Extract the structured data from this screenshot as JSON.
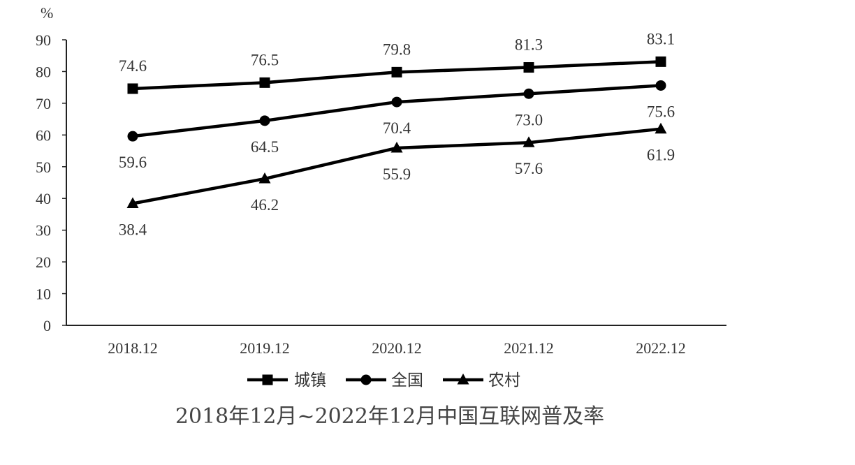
{
  "chart_data": {
    "type": "line",
    "title": "2018年12月~2022年12月中国互联网普及率",
    "ylabel": "%",
    "xlabel": "",
    "categories": [
      "2018.12",
      "2019.12",
      "2020.12",
      "2021.12",
      "2022.12"
    ],
    "ylim": [
      0,
      90
    ],
    "yticks": [
      0,
      10,
      20,
      30,
      40,
      50,
      60,
      70,
      80,
      90
    ],
    "grid": false,
    "legend_position": "bottom",
    "series": [
      {
        "name": "城镇",
        "marker": "square",
        "color": "#000000",
        "values": [
          74.6,
          76.5,
          79.8,
          81.3,
          83.1
        ],
        "labels": [
          "74.6",
          "76.5",
          "79.8",
          "81.3",
          "83.1"
        ],
        "label_position": "above"
      },
      {
        "name": "全国",
        "marker": "circle",
        "color": "#000000",
        "values": [
          59.6,
          64.5,
          70.4,
          73.0,
          75.6
        ],
        "labels": [
          "59.6",
          "64.5",
          "70.4",
          "73.0",
          "75.6"
        ],
        "label_position": "below"
      },
      {
        "name": "农村",
        "marker": "triangle",
        "color": "#000000",
        "values": [
          38.4,
          46.2,
          55.9,
          57.6,
          61.9
        ],
        "labels": [
          "38.4",
          "46.2",
          "55.9",
          "57.6",
          "61.9"
        ],
        "label_position": "below"
      }
    ]
  }
}
